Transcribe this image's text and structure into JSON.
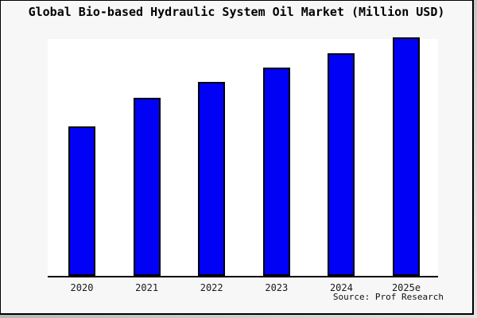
{
  "title": "Global Bio-based Hydraulic System Oil Market (Million USD)",
  "source": "Source: Prof Research",
  "chart_data": {
    "type": "bar",
    "title": "Global Bio-based Hydraulic System Oil Market (Million USD)",
    "categories": [
      "2020",
      "2021",
      "2022",
      "2023",
      "2024",
      "2025e"
    ],
    "values": [
      62.6,
      74.7,
      81.5,
      87.4,
      93.4,
      100
    ],
    "value_scale": "relative index; no y-axis labels shown in chart, 2025e bar = 100",
    "xlabel": "",
    "ylabel": "",
    "ylim": [
      0,
      100
    ],
    "grid": false,
    "legend": false,
    "annotation": "Source: Prof Research",
    "bar_color": "#0101f5",
    "bar_border_color": "#000000"
  },
  "colors": {
    "background": "#f7f7f7",
    "plot_background": "#ffffff",
    "bar_fill": "#0101f5",
    "bar_border": "#000000",
    "axis": "#000000",
    "frame_border": "#000000",
    "shadow": "#b5b5b5",
    "title_text": "#000000",
    "label_text": "#1a1a1a"
  }
}
